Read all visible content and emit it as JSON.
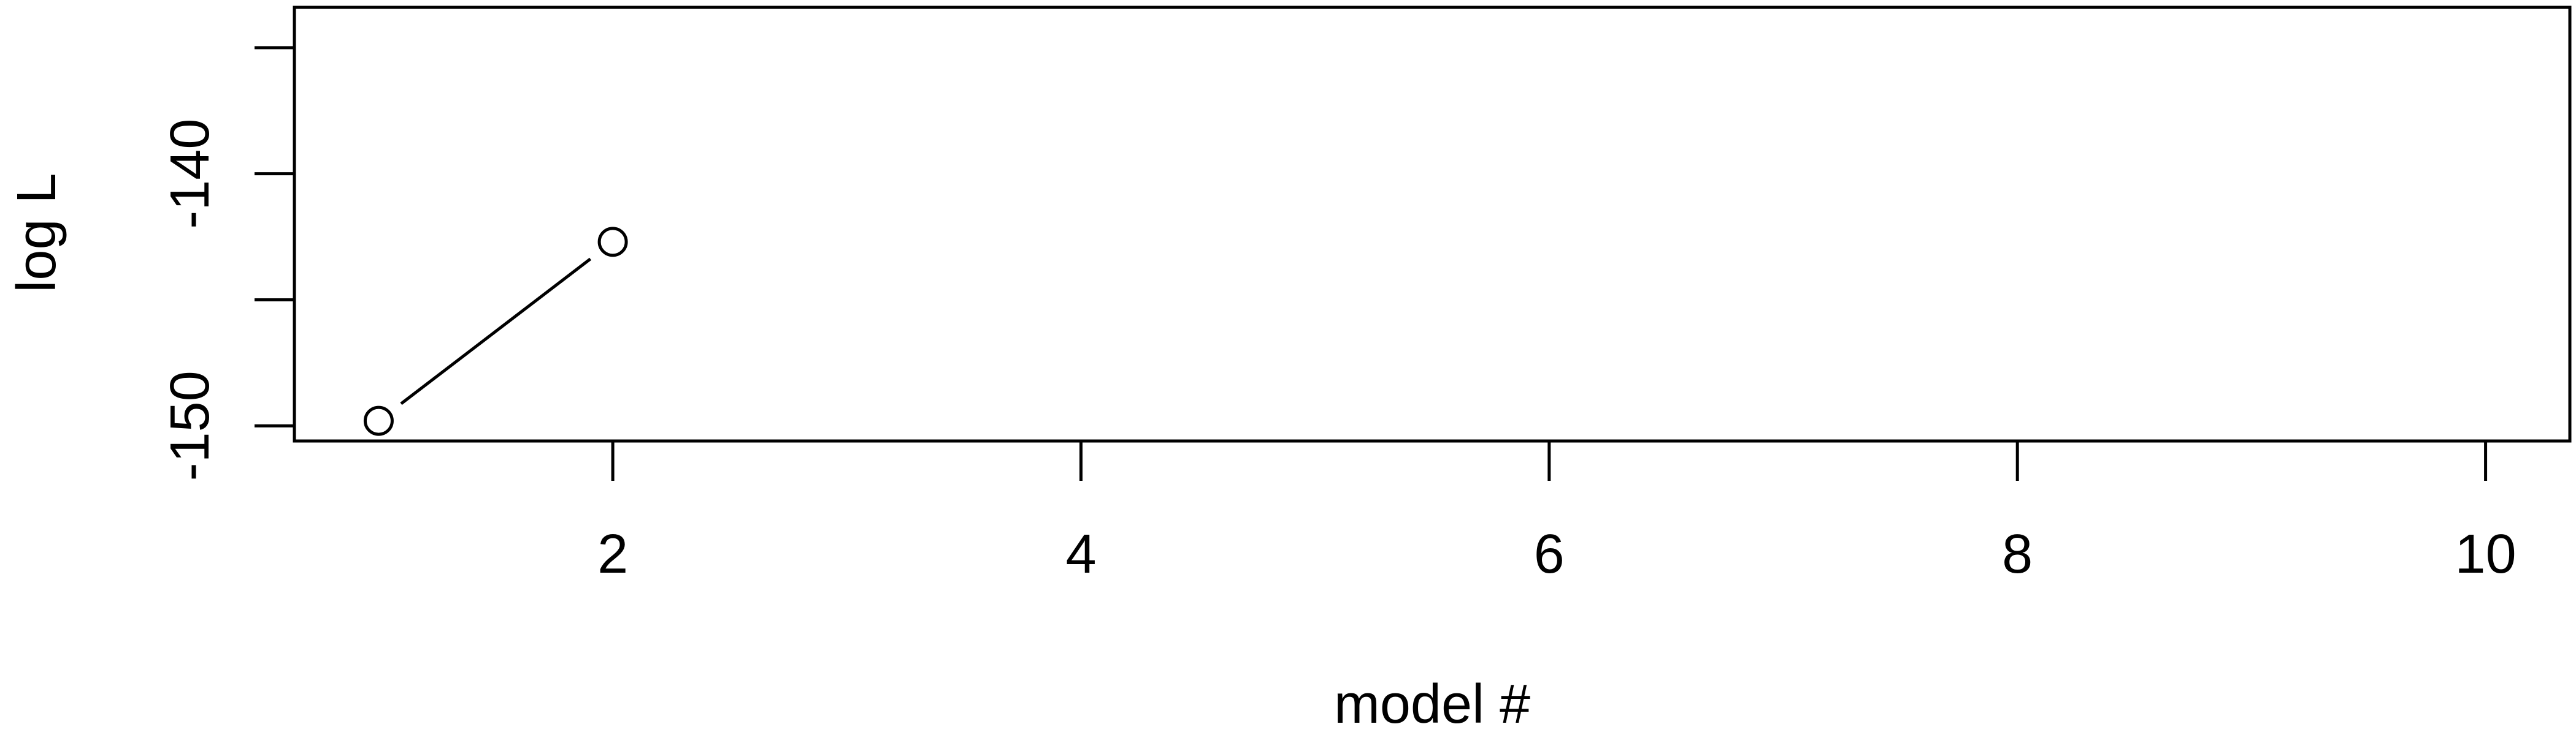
{
  "chart_data": {
    "type": "line",
    "title": "",
    "xlabel": "model #",
    "ylabel": "log L",
    "xlim": [
      0.64,
      10.36
    ],
    "ylim": [
      -150.6,
      -133.4
    ],
    "x_ticks": [
      {
        "value": 2,
        "label": "2"
      },
      {
        "value": 4,
        "label": "4"
      },
      {
        "value": 6,
        "label": "6"
      },
      {
        "value": 8,
        "label": "8"
      },
      {
        "value": 10,
        "label": "10"
      }
    ],
    "y_ticks": [
      {
        "value": -150,
        "label": "-150"
      },
      {
        "value": -145,
        "label": ""
      },
      {
        "value": -140,
        "label": "-140"
      },
      {
        "value": -135,
        "label": ""
      }
    ],
    "series": [
      {
        "x": [
          1,
          2
        ],
        "y": [
          -149.8,
          -142.7
        ]
      }
    ],
    "grid": false,
    "marker": "open-circle",
    "line_style": "b"
  }
}
